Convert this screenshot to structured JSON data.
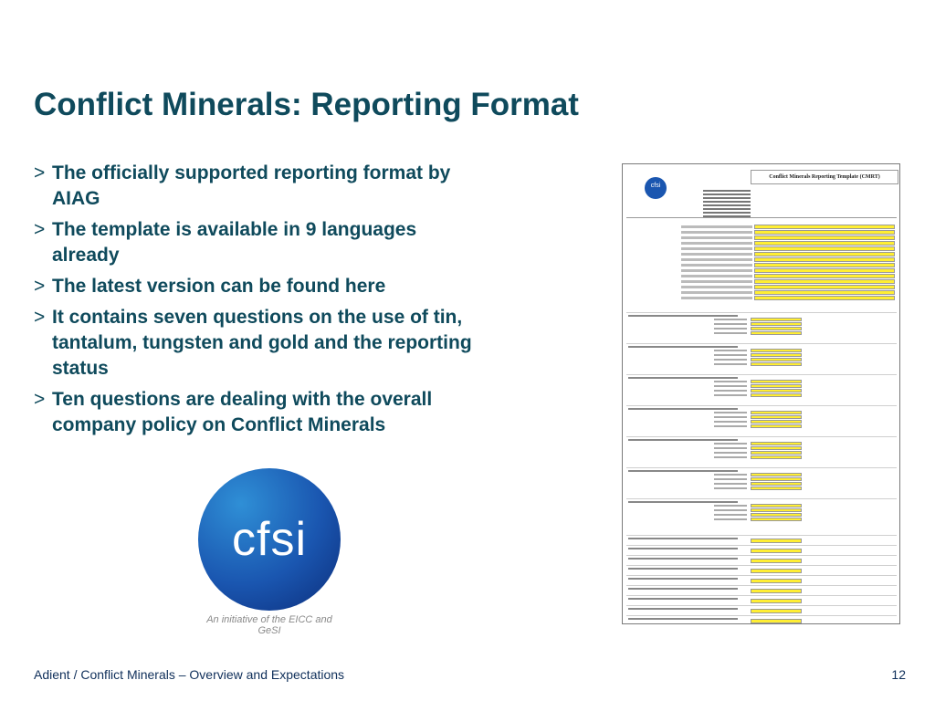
{
  "title": "Conflict Minerals: Reporting Format",
  "bullet_marker": ">",
  "bullets": [
    "The officially supported reporting format by AIAG",
    "The template is available in 9 languages already",
    "The latest version can be found here",
    "It contains seven questions on the use of tin, tantalum, tungsten and gold and the reporting status",
    "Ten questions are dealing with the overall company policy on Conflict Minerals"
  ],
  "logo": {
    "name": "cfsi",
    "tagline": "An initiative of the EICC and GeSI",
    "color": "#1a56b0"
  },
  "document_thumbnail": {
    "title": "Conflict Minerals Reporting Template (CMRT)",
    "highlight_color": "#ffee33"
  },
  "footer": {
    "text": "Adient / Conflict Minerals – Overview and Expectations",
    "page_number": "12"
  },
  "colors": {
    "title": "#0f4a5c",
    "footer": "#0f2f5a"
  }
}
